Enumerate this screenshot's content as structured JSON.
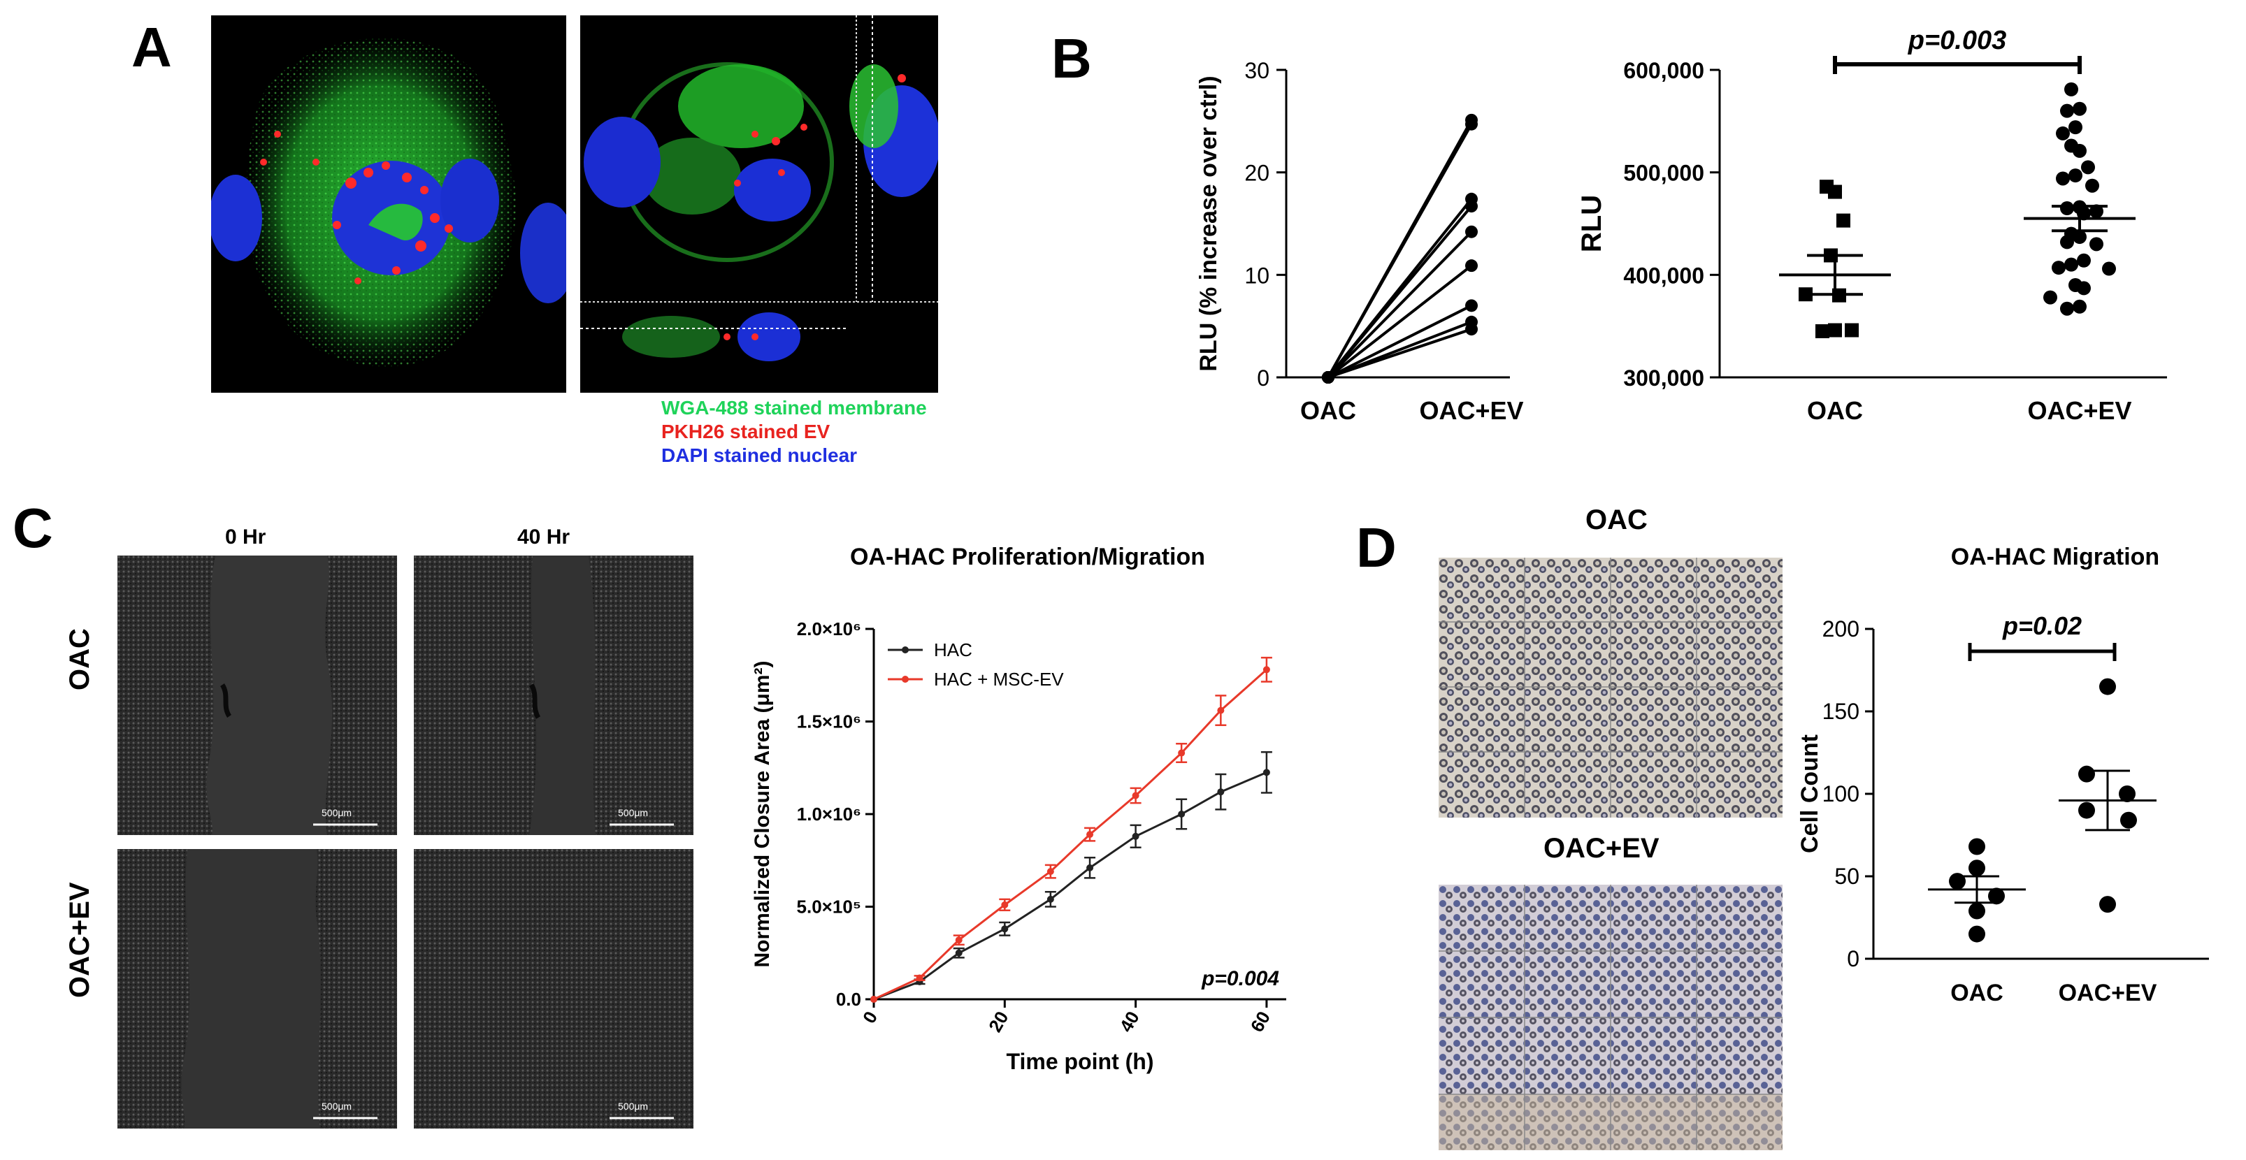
{
  "panels": {
    "A": {
      "letter": "A",
      "legend": [
        {
          "text": "WGA-488 stained membrane",
          "color": "#1fd35a"
        },
        {
          "text": "PKH26 stained EV",
          "color": "#e8231f"
        },
        {
          "text": "DAPI stained nuclear",
          "color": "#1f2fe0"
        }
      ]
    },
    "B": {
      "letter": "B",
      "p_value": "p=0.003"
    },
    "C": {
      "letter": "C",
      "col_labels": [
        "0 Hr",
        "40 Hr"
      ],
      "row_labels": [
        "OAC",
        "OAC+EV"
      ],
      "scale_bar": "500μm",
      "p_value": "p=0.004"
    },
    "D": {
      "letter": "D",
      "img_labels": [
        "OAC",
        "OAC+EV"
      ],
      "p_value": "p=0.02"
    }
  },
  "chart_data": [
    {
      "id": "B-left",
      "type": "line",
      "title": "",
      "ylabel": "RLU (% increase over ctrl)",
      "xlabel": "",
      "categories": [
        "OAC",
        "OAC+EV"
      ],
      "ylim": [
        0,
        30
      ],
      "yticks": [
        "0",
        "10",
        "20",
        "30"
      ],
      "series": [
        {
          "values": [
            0,
            25.1
          ]
        },
        {
          "values": [
            0,
            24.7
          ]
        },
        {
          "values": [
            0,
            17.4
          ]
        },
        {
          "values": [
            0,
            16.7
          ]
        },
        {
          "values": [
            0,
            14.2
          ]
        },
        {
          "values": [
            0,
            10.9
          ]
        },
        {
          "values": [
            0,
            7.0
          ]
        },
        {
          "values": [
            0,
            5.4
          ]
        },
        {
          "values": [
            0,
            4.7
          ]
        }
      ]
    },
    {
      "id": "B-right",
      "type": "scatter",
      "title": "",
      "ylabel": "RLU",
      "xlabel": "",
      "categories": [
        "OAC",
        "OAC+EV"
      ],
      "ylim": [
        300000,
        600000
      ],
      "yticks": [
        "300,000",
        "400,000",
        "500,000",
        "600,000"
      ],
      "groups": [
        {
          "name": "OAC",
          "marker": "square",
          "mean": 400000,
          "sem": 19000,
          "values": [
            486000,
            481000,
            453000,
            419000,
            380000,
            381000,
            346000,
            345000,
            346000
          ]
        },
        {
          "name": "OAC+EV",
          "marker": "circle",
          "mean": 455000,
          "sem": 12000,
          "values": [
            581000,
            562000,
            560000,
            544000,
            538000,
            526000,
            521000,
            505000,
            497000,
            494000,
            487000,
            466000,
            465000,
            462000,
            460000,
            440000,
            437000,
            432000,
            430000,
            414000,
            410000,
            407000,
            406000,
            390000,
            387000,
            378000,
            369000,
            367000
          ]
        }
      ]
    },
    {
      "id": "C-chart",
      "type": "line",
      "title": "OA-HAC Proliferation/Migration",
      "xlabel": "Time point (h)",
      "ylabel": "Normalized Closure Area (μm²)",
      "xlim": [
        0,
        63
      ],
      "ylim": [
        0,
        2000000
      ],
      "xticks": [
        "0",
        "20",
        "40",
        "60"
      ],
      "yticks": [
        "0.0",
        "5.0×10⁵",
        "1.0×10⁶",
        "1.5×10⁶",
        "2.0×10⁶"
      ],
      "x": [
        0,
        7,
        13,
        20,
        27,
        33,
        40,
        47,
        53,
        60
      ],
      "series": [
        {
          "name": "HAC",
          "color": "#222222",
          "values": [
            0,
            95000,
            250000,
            380000,
            540000,
            710000,
            880000,
            1000000,
            1120000,
            1225000
          ],
          "errors": [
            0,
            12000,
            25000,
            35000,
            40000,
            55000,
            60000,
            80000,
            95000,
            110000
          ]
        },
        {
          "name": "HAC + MSC-EV",
          "color": "#e8392a",
          "values": [
            0,
            115000,
            320000,
            510000,
            690000,
            890000,
            1100000,
            1330000,
            1560000,
            1780000
          ],
          "errors": [
            0,
            12000,
            25000,
            30000,
            35000,
            35000,
            40000,
            50000,
            80000,
            65000
          ]
        }
      ]
    },
    {
      "id": "D-chart",
      "type": "scatter",
      "title": "OA-HAC Migration",
      "xlabel": "",
      "ylabel": "Cell Count",
      "categories": [
        "OAC",
        "OAC+EV"
      ],
      "ylim": [
        0,
        200
      ],
      "yticks": [
        "0",
        "50",
        "100",
        "150",
        "200"
      ],
      "groups": [
        {
          "name": "OAC",
          "marker": "circle",
          "mean": 42,
          "sem": 8,
          "values": [
            68,
            55,
            47,
            38,
            29,
            15
          ]
        },
        {
          "name": "OAC+EV",
          "marker": "circle",
          "mean": 96,
          "sem": 18,
          "values": [
            165,
            112,
            100,
            90,
            84,
            33
          ]
        }
      ]
    }
  ]
}
